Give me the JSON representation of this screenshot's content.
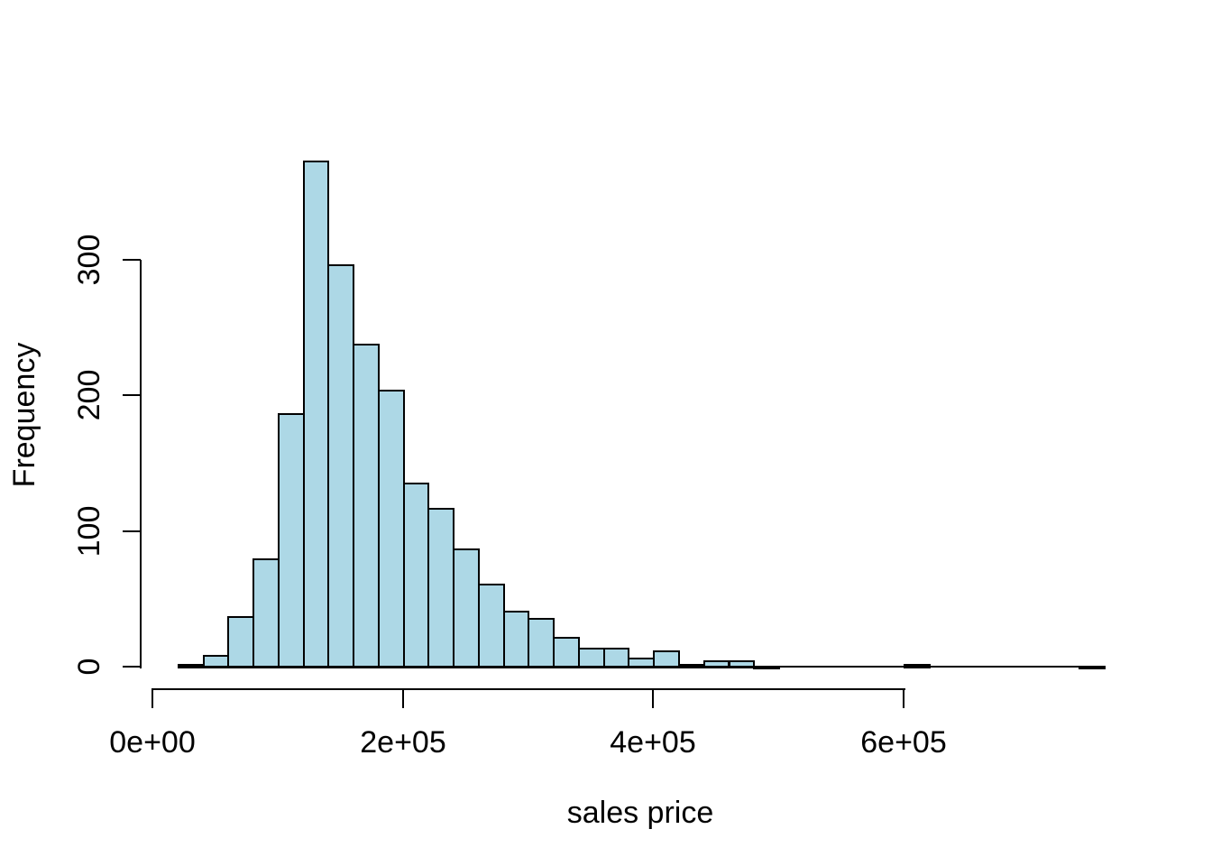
{
  "chart_data": {
    "type": "bar",
    "subtype": "histogram",
    "title": "",
    "xlabel": "sales price",
    "ylabel": "Frequency",
    "bar_fill": "#ADD8E6",
    "bar_stroke": "#000000",
    "background": "#FFFFFF",
    "bin_start": 20000,
    "bin_width": 20000,
    "counts": [
      2,
      9,
      37,
      80,
      187,
      373,
      297,
      238,
      204,
      136,
      117,
      87,
      61,
      41,
      36,
      22,
      14,
      14,
      7,
      12,
      2,
      5,
      5,
      1,
      0,
      0,
      0,
      0,
      0,
      2,
      0,
      0,
      0,
      0,
      0,
      0,
      1
    ],
    "xlim": [
      0,
      760000
    ],
    "ylim": [
      0,
      373
    ],
    "grid": "off",
    "legend": "none",
    "x_ticks": [
      {
        "value": 0,
        "label": "0e+00"
      },
      {
        "value": 200000,
        "label": "2e+05"
      },
      {
        "value": 400000,
        "label": "4e+05"
      },
      {
        "value": 600000,
        "label": "6e+05"
      }
    ],
    "y_ticks": [
      {
        "value": 0,
        "label": "0"
      },
      {
        "value": 100,
        "label": "100"
      },
      {
        "value": 200,
        "label": "200"
      },
      {
        "value": 300,
        "label": "300"
      }
    ]
  }
}
